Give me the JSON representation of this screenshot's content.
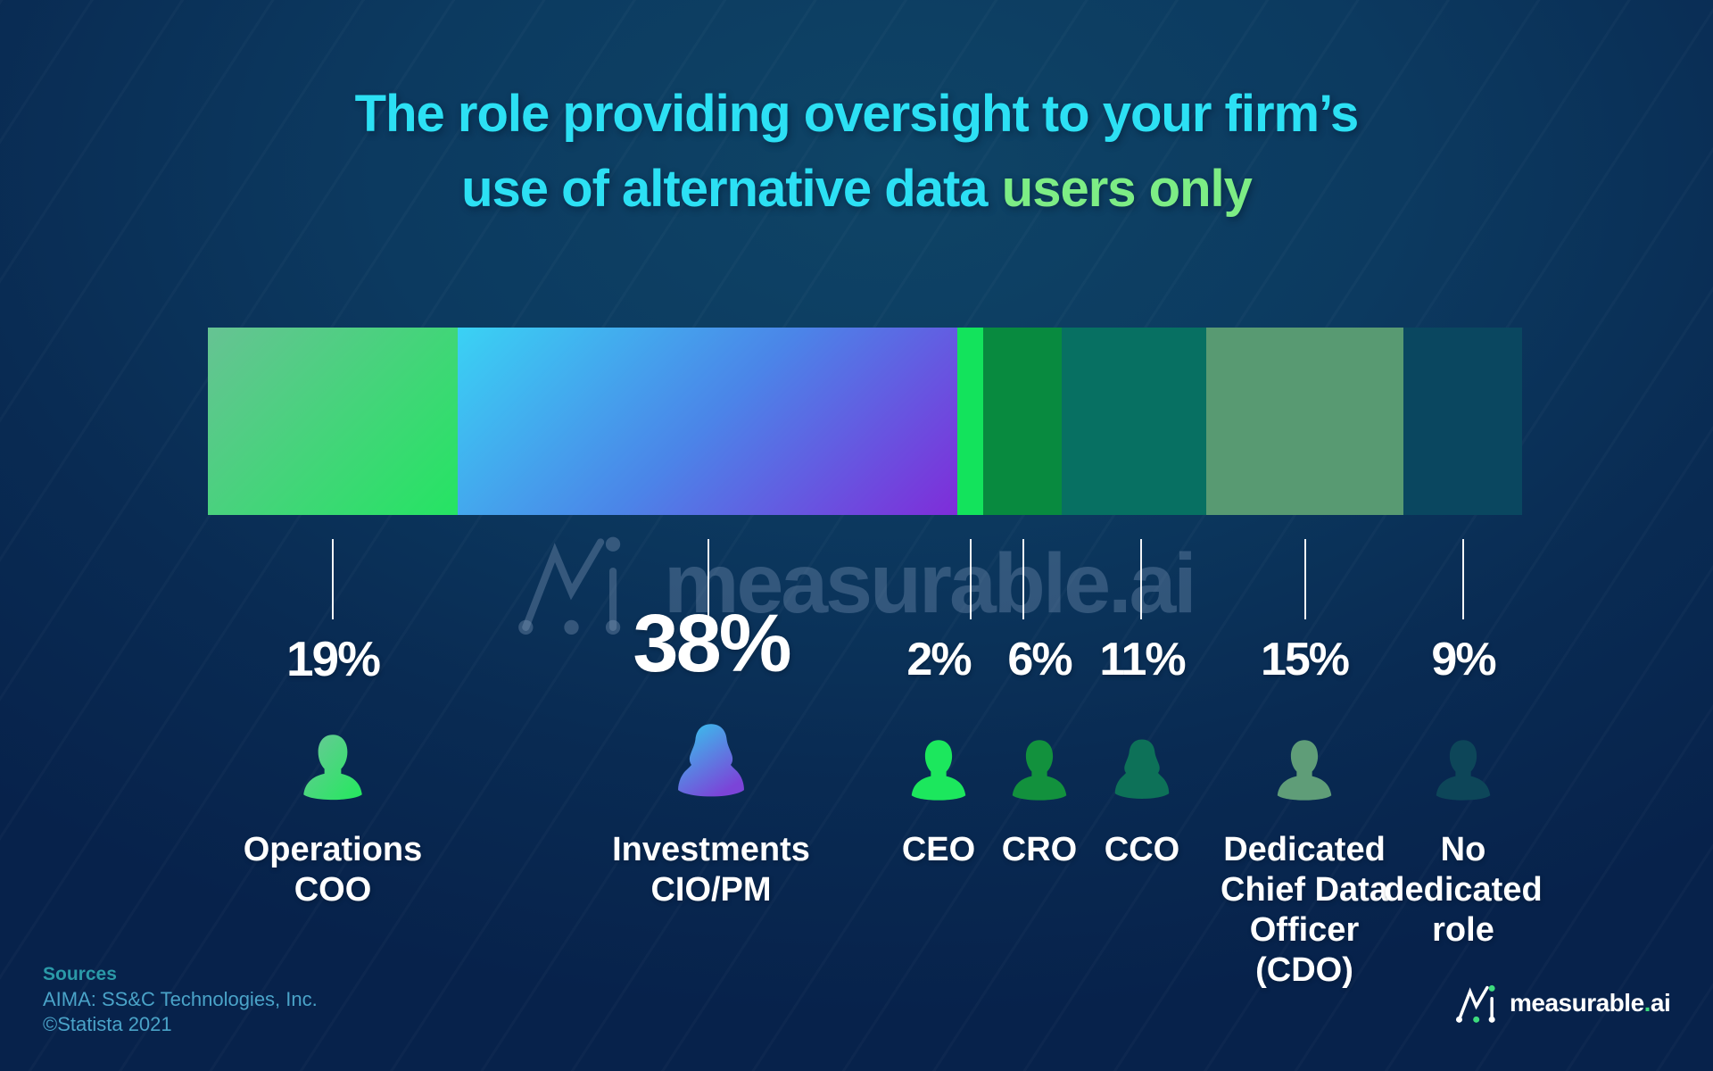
{
  "title": {
    "line1": "The role providing oversight to your firm’s",
    "line2_cyan": "use of alternative data",
    "line2_green": "users only"
  },
  "chart_data": {
    "type": "bar",
    "subtype": "horizontal-stacked-single-bar",
    "title": "The role providing oversight to your firm’s use of alternative data users only",
    "categories": [
      "Operations COO",
      "Investments CIO/PM",
      "CEO",
      "CRO",
      "CCO",
      "Dedicated Chief Data Officer (CDO)",
      "No dedicated role"
    ],
    "values": [
      19,
      38,
      2,
      6,
      11,
      15,
      9
    ],
    "unit": "%",
    "legend_position": "below-bar",
    "segment_colors": [
      [
        "#66c393",
        "#25e463"
      ],
      [
        "#3ad2f4",
        "#4b85e8",
        "#7f2cd9"
      ],
      [
        "#13e35c"
      ],
      [
        "#088a3f"
      ],
      [
        "#077062"
      ],
      [
        "#589a72"
      ],
      [
        "#0a4760"
      ]
    ]
  },
  "columns": [
    {
      "pct": "19%",
      "label": "Operations\nCOO",
      "icon": "person-male",
      "icon_gradient": [
        "#6cc79a",
        "#23e95d"
      ]
    },
    {
      "pct": "38%",
      "label": "Investments\nCIO/PM",
      "icon": "person-female",
      "icon_gradient": [
        "#34c9ee",
        "#7b44d8"
      ]
    },
    {
      "pct": "2%",
      "label": "CEO",
      "icon": "person-male",
      "icon_color": "#1ce75d"
    },
    {
      "pct": "6%",
      "label": "CRO",
      "icon": "person-male",
      "icon_color": "#12913d"
    },
    {
      "pct": "11%",
      "label": "CCO",
      "icon": "person-female",
      "icon_color": "#0d7158"
    },
    {
      "pct": "15%",
      "label": "Dedicated\nChief Data\nOfficer\n(CDO)",
      "icon": "person-male",
      "icon_color": "#5f9d78"
    },
    {
      "pct": "9%",
      "label": "No\ndedicated\nrole",
      "icon": "person-male",
      "icon_color": "#0d4659"
    }
  ],
  "watermark": {
    "text": "measurable.ai"
  },
  "sources": {
    "heading": "Sources",
    "line1": "AIMA: SS&C Technologies, Inc.",
    "line2": "©Statista 2021"
  },
  "footer": {
    "brand_name": "measurable",
    "brand_dot": ".",
    "brand_tld": "ai",
    "dot_color": "#3ddc7d"
  },
  "colors": {
    "background_top": "#0e4466",
    "background_bottom": "#07224b",
    "title_cyan": "#2ce0f4",
    "title_green": "#7ded85",
    "text_white": "#ffffff",
    "watermark_slate": "#829bbb",
    "sources_heading": "#2b9aa8",
    "sources_body": "#4aa3c8",
    "leader_line": "#ffffff"
  }
}
